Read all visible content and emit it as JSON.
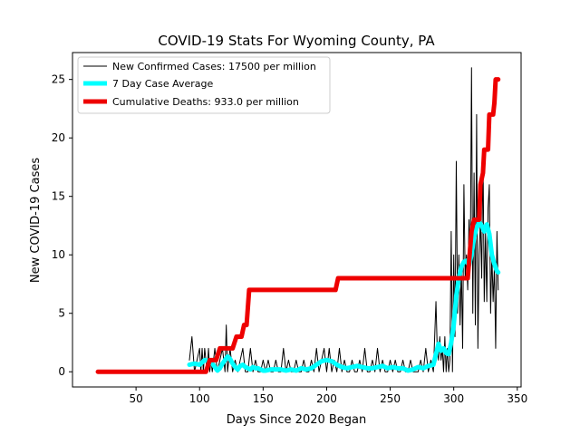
{
  "chart_data": {
    "type": "line",
    "title": "COVID-19 Stats For Wyoming County, PA",
    "xlabel": "Days Since 2020 Began",
    "ylabel": "New COVID-19 Cases",
    "xlim": [
      0,
      353
    ],
    "ylim": [
      -1.3,
      27.3
    ],
    "xticks": [
      50,
      100,
      150,
      200,
      250,
      300,
      350
    ],
    "yticks": [
      0,
      5,
      10,
      15,
      20,
      25
    ],
    "grid": false,
    "legend_position": "top-left",
    "series": [
      {
        "name": "New Confirmed Cases: 17500 per million",
        "color": "#000000",
        "style": "thin",
        "x": [
          92,
          94,
          96,
          98,
          100,
          101,
          102,
          103,
          104,
          105,
          106,
          107,
          108,
          109,
          110,
          112,
          114,
          116,
          118,
          120,
          121,
          122,
          123,
          124,
          126,
          128,
          130,
          132,
          134,
          136,
          138,
          140,
          142,
          144,
          146,
          148,
          150,
          152,
          154,
          156,
          158,
          160,
          162,
          164,
          166,
          168,
          170,
          172,
          174,
          176,
          178,
          180,
          182,
          184,
          186,
          188,
          190,
          192,
          194,
          196,
          198,
          200,
          202,
          204,
          206,
          208,
          210,
          212,
          214,
          216,
          218,
          220,
          222,
          224,
          226,
          228,
          230,
          232,
          234,
          236,
          238,
          240,
          242,
          244,
          246,
          248,
          250,
          252,
          254,
          256,
          258,
          260,
          262,
          264,
          266,
          268,
          270,
          272,
          274,
          276,
          278,
          280,
          282,
          284,
          286,
          287,
          288,
          289,
          290,
          291,
          292,
          293,
          294,
          295,
          296,
          297,
          298,
          299,
          300,
          301,
          302,
          303,
          304,
          305,
          306,
          307,
          308,
          309,
          310,
          311,
          312,
          313,
          314,
          315,
          316,
          317,
          318,
          319,
          320,
          321,
          322,
          323,
          324,
          325,
          326,
          327,
          328,
          329,
          330,
          331,
          332,
          333,
          334,
          335
        ],
        "values": [
          1,
          3,
          0,
          1,
          2,
          0,
          2,
          0,
          2,
          1,
          0,
          2,
          0,
          1,
          0,
          2,
          0,
          1,
          2,
          0,
          4,
          0,
          1,
          2,
          0,
          1,
          0,
          1,
          2,
          0,
          0,
          2,
          0,
          1,
          0,
          0,
          1,
          0,
          1,
          0,
          0,
          1,
          0,
          0,
          2,
          0,
          1,
          0,
          0,
          1,
          0,
          0,
          1,
          0,
          0,
          1,
          0,
          2,
          0,
          1,
          2,
          0,
          2,
          0,
          1,
          0,
          2,
          0,
          1,
          0,
          0,
          1,
          0,
          0,
          1,
          0,
          2,
          0,
          0,
          1,
          0,
          2,
          0,
          1,
          0,
          0,
          1,
          0,
          1,
          0,
          0,
          1,
          0,
          0,
          1,
          0,
          0,
          0,
          1,
          0,
          2,
          0,
          1,
          0,
          6,
          2,
          1,
          3,
          1,
          2,
          0,
          3,
          0,
          2,
          0,
          1,
          12,
          0,
          10,
          3,
          18,
          5,
          10,
          4,
          9,
          2,
          16,
          8,
          10,
          7,
          13,
          9,
          26,
          5,
          17,
          4,
          22,
          2,
          10,
          13,
          8,
          19,
          6,
          12,
          6,
          14,
          16,
          5,
          10,
          6,
          9,
          2,
          12,
          7
        ],
        "line_width": 1
      },
      {
        "name": "7 Day Case Average",
        "color": "#00ffff",
        "x": [
          92,
          96,
          100,
          104,
          108,
          110,
          112,
          114,
          116,
          118,
          120,
          122,
          124,
          126,
          128,
          130,
          132,
          134,
          136,
          138,
          140,
          142,
          144,
          146,
          148,
          150,
          152,
          156,
          160,
          164,
          168,
          172,
          176,
          180,
          184,
          188,
          192,
          196,
          200,
          204,
          208,
          212,
          216,
          220,
          224,
          228,
          232,
          236,
          240,
          244,
          248,
          252,
          256,
          260,
          264,
          268,
          272,
          276,
          280,
          284,
          286,
          288,
          290,
          292,
          294,
          296,
          298,
          300,
          302,
          304,
          306,
          308,
          310,
          312,
          314,
          316,
          318,
          320,
          322,
          324,
          326,
          328,
          330,
          332,
          334,
          335
        ],
        "values": [
          0.6,
          0.7,
          0.6,
          1.0,
          0.9,
          0.7,
          0.4,
          0.1,
          0.3,
          0.7,
          1.0,
          1.3,
          1.1,
          0.7,
          0.4,
          0.2,
          0.5,
          0.6,
          0.4,
          0.3,
          0.2,
          0.4,
          0.3,
          0.3,
          0.2,
          0.1,
          0.1,
          0.2,
          0.2,
          0.2,
          0.1,
          0.2,
          0.1,
          0.3,
          0.2,
          0.3,
          0.6,
          0.9,
          1.0,
          0.9,
          0.6,
          0.4,
          0.3,
          0.4,
          0.5,
          0.4,
          0.3,
          0.3,
          0.4,
          0.5,
          0.3,
          0.4,
          0.3,
          0.3,
          0.1,
          0.2,
          0.4,
          0.3,
          0.5,
          0.6,
          1.5,
          2.4,
          1.8,
          2.0,
          1.6,
          1.5,
          2.5,
          4.0,
          6.5,
          8.0,
          9.0,
          9.4,
          9.5,
          9.1,
          10.0,
          11.5,
          12.3,
          12.8,
          12.5,
          12.0,
          12.6,
          11.8,
          10.0,
          9.2,
          8.6,
          8.5
        ],
        "line_width": 5
      },
      {
        "name": "Cumulative Deaths: 933.0 per million",
        "color": "#ee0000",
        "x": [
          20,
          105,
          108,
          113,
          116,
          126,
          129,
          133,
          135,
          137,
          139,
          141,
          207,
          209,
          297,
          300,
          308,
          311,
          314,
          316,
          318,
          320,
          321,
          323,
          324,
          327,
          328,
          331,
          332,
          333,
          335
        ],
        "values": [
          0,
          0,
          1,
          1,
          2,
          2,
          3,
          3,
          4,
          4,
          7,
          7,
          7,
          8,
          8,
          8,
          8,
          8,
          12,
          13,
          13,
          13,
          16,
          17,
          19,
          19,
          22,
          22,
          23,
          25,
          25
        ],
        "line_width": 5
      }
    ]
  }
}
